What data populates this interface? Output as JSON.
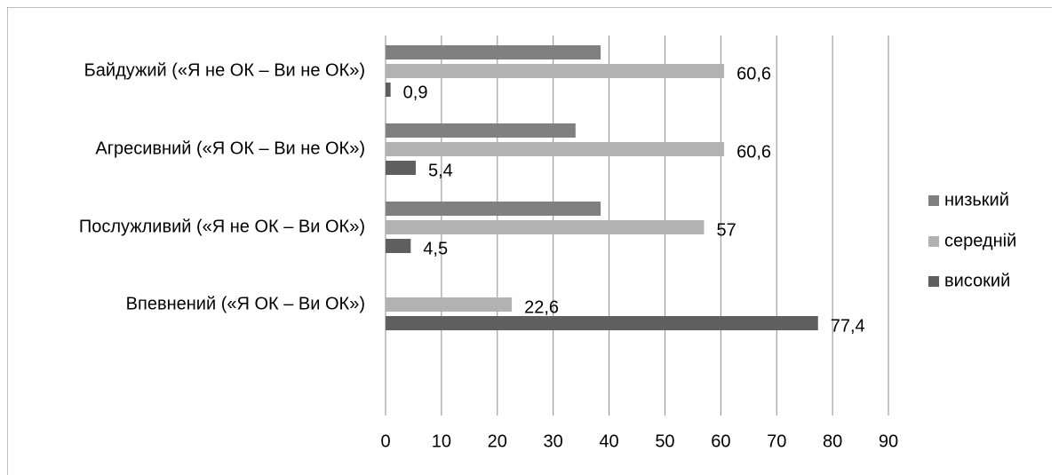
{
  "chart_data": {
    "type": "bar",
    "orientation": "horizontal",
    "categories": [
      "Байдужий («Я не ОК – Ви не ОК»)",
      "Агресивний («Я ОК – Ви не ОК»)",
      "Послужливий («Я не ОК – Ви ОК»)",
      "Впевнений («Я ОК – Ви ОК»)"
    ],
    "series": [
      {
        "name": "низький",
        "color": "#808080",
        "values": [
          38.5,
          34.0,
          38.5,
          null
        ],
        "labels": [
          "",
          "",
          "",
          ""
        ]
      },
      {
        "name": "середній",
        "color": "#b2b2b2",
        "values": [
          60.6,
          60.6,
          57,
          22.6
        ],
        "labels": [
          "60,6",
          "60,6",
          "57",
          "22,6"
        ]
      },
      {
        "name": "високий",
        "color": "#5f5f5f",
        "values": [
          0.9,
          5.4,
          4.5,
          77.4
        ],
        "labels": [
          "0,9",
          "5,4",
          "4,5",
          "77,4"
        ]
      }
    ],
    "xlim": [
      0,
      90
    ],
    "xticks": [
      "0",
      "10",
      "20",
      "30",
      "40",
      "50",
      "60",
      "70",
      "80",
      "90"
    ],
    "grid": "vertical",
    "legend": "right",
    "title": "",
    "xlabel": "",
    "ylabel": ""
  }
}
